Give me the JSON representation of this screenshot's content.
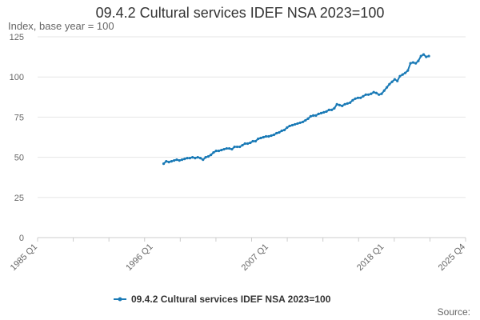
{
  "chart_data": {
    "type": "line",
    "title": "09.4.2 Cultural services IDEF NSA 2023=100",
    "subtitle": "Index, base year = 100",
    "source_label": "Source:",
    "ylim": [
      0,
      125
    ],
    "y_ticks": [
      0,
      25,
      50,
      75,
      100,
      125
    ],
    "x_range": [
      1985.0,
      2025.75
    ],
    "x_ticks": [
      {
        "label": "1985 Q1",
        "x": 1985.0
      },
      {
        "label": "1996 Q1",
        "x": 1996.0
      },
      {
        "label": "2007 Q1",
        "x": 2007.0
      },
      {
        "label": "2018 Q1",
        "x": 2018.0
      },
      {
        "label": "2025 Q4",
        "x": 2025.75
      }
    ],
    "colors": {
      "series": "#1a7ab6",
      "grid": "#e6e6e6",
      "axis": "#cccccc"
    },
    "series": [
      {
        "name": "09.4.2 Cultural services IDEF NSA 2023=100",
        "points": [
          [
            1997.0,
            46
          ],
          [
            1997.25,
            47.5
          ],
          [
            1997.5,
            47
          ],
          [
            1997.75,
            47.5
          ],
          [
            1998.0,
            48
          ],
          [
            1998.25,
            48.5
          ],
          [
            1998.5,
            48
          ],
          [
            1998.75,
            48.5
          ],
          [
            1999.0,
            49
          ],
          [
            1999.25,
            49.5
          ],
          [
            1999.5,
            49.5
          ],
          [
            1999.75,
            50
          ],
          [
            2000.0,
            49.5
          ],
          [
            2000.25,
            50
          ],
          [
            2000.5,
            49.5
          ],
          [
            2000.75,
            48.5
          ],
          [
            2001.0,
            50
          ],
          [
            2001.25,
            50.5
          ],
          [
            2001.5,
            51.5
          ],
          [
            2001.75,
            53
          ],
          [
            2002.0,
            54
          ],
          [
            2002.25,
            54
          ],
          [
            2002.5,
            54.5
          ],
          [
            2002.75,
            55
          ],
          [
            2003.0,
            55.5
          ],
          [
            2003.25,
            55.5
          ],
          [
            2003.5,
            55
          ],
          [
            2003.75,
            56.5
          ],
          [
            2004.0,
            56.5
          ],
          [
            2004.25,
            56.5
          ],
          [
            2004.5,
            57.5
          ],
          [
            2004.75,
            58.5
          ],
          [
            2005.0,
            58.5
          ],
          [
            2005.25,
            59
          ],
          [
            2005.5,
            60
          ],
          [
            2005.75,
            60
          ],
          [
            2006.0,
            61.5
          ],
          [
            2006.25,
            62
          ],
          [
            2006.5,
            62.5
          ],
          [
            2006.75,
            63
          ],
          [
            2007.0,
            63
          ],
          [
            2007.25,
            63.5
          ],
          [
            2007.5,
            64
          ],
          [
            2007.75,
            65
          ],
          [
            2008.0,
            65.5
          ],
          [
            2008.25,
            66.5
          ],
          [
            2008.5,
            67
          ],
          [
            2008.75,
            68.5
          ],
          [
            2009.0,
            69.5
          ],
          [
            2009.25,
            70
          ],
          [
            2009.5,
            70.5
          ],
          [
            2009.75,
            71
          ],
          [
            2010.0,
            71.5
          ],
          [
            2010.25,
            72
          ],
          [
            2010.5,
            73
          ],
          [
            2010.75,
            74
          ],
          [
            2011.0,
            75.5
          ],
          [
            2011.25,
            76
          ],
          [
            2011.5,
            76
          ],
          [
            2011.75,
            77
          ],
          [
            2012.0,
            77.5
          ],
          [
            2012.25,
            78
          ],
          [
            2012.5,
            78.5
          ],
          [
            2012.75,
            79.5
          ],
          [
            2013.0,
            79.5
          ],
          [
            2013.25,
            80.5
          ],
          [
            2013.5,
            83
          ],
          [
            2013.75,
            82.5
          ],
          [
            2014.0,
            82
          ],
          [
            2014.25,
            83
          ],
          [
            2014.5,
            83.5
          ],
          [
            2014.75,
            84
          ],
          [
            2015.0,
            85.5
          ],
          [
            2015.25,
            86.5
          ],
          [
            2015.5,
            87
          ],
          [
            2015.75,
            87
          ],
          [
            2016.0,
            88
          ],
          [
            2016.25,
            89
          ],
          [
            2016.5,
            89
          ],
          [
            2016.75,
            89.5
          ],
          [
            2017.0,
            90.5
          ],
          [
            2017.25,
            90
          ],
          [
            2017.5,
            89
          ],
          [
            2017.75,
            89.5
          ],
          [
            2018.0,
            91.5
          ],
          [
            2018.25,
            93.5
          ],
          [
            2018.5,
            95.5
          ],
          [
            2018.75,
            97
          ],
          [
            2019.0,
            98.5
          ],
          [
            2019.25,
            97.5
          ],
          [
            2019.5,
            100.5
          ],
          [
            2019.75,
            101.5
          ],
          [
            2020.0,
            102.5
          ],
          [
            2020.25,
            104
          ],
          [
            2020.5,
            108.5
          ],
          [
            2020.75,
            109
          ],
          [
            2021.0,
            108.5
          ],
          [
            2021.25,
            110
          ],
          [
            2021.5,
            113
          ],
          [
            2021.75,
            114
          ],
          [
            2022.0,
            112.5
          ],
          [
            2022.25,
            113
          ]
        ]
      }
    ]
  }
}
